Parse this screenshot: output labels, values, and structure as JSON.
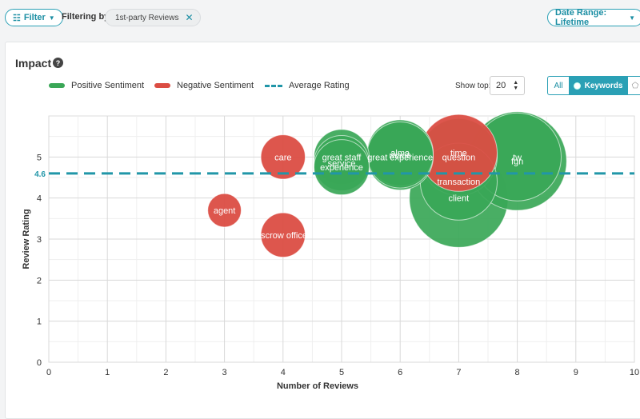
{
  "toolbar": {
    "filter_label": "Filter",
    "filtering_by_label": "Filtering by:",
    "chip_label": "1st-party Reviews",
    "date_range_label": "Date Range: Lifetime"
  },
  "panel": {
    "title": "Impact",
    "help_glyph": "?",
    "show_top_label": "Show top:",
    "show_top_value": "20",
    "view_all_label": "All",
    "view_keywords_label": "Keywords"
  },
  "colors": {
    "positive": "#3aa757",
    "negative": "#db4d43",
    "average": "#2196a8",
    "accent": "#2aa0b5"
  },
  "chart_data": {
    "type": "scatter",
    "subtype": "bubble",
    "xlabel": "Number of Reviews",
    "ylabel": "Review Rating",
    "xlim": [
      0,
      10
    ],
    "ylim": [
      0,
      6
    ],
    "xticks": [
      0,
      1,
      2,
      3,
      4,
      5,
      6,
      7,
      8,
      9,
      10
    ],
    "yticks": [
      0,
      1,
      2,
      3,
      4,
      5
    ],
    "grid": true,
    "legend": [
      {
        "name": "Positive Sentiment",
        "kind": "positive"
      },
      {
        "name": "Negative Sentiment",
        "kind": "negative"
      },
      {
        "name": "Average Rating",
        "kind": "average"
      }
    ],
    "average_rating": 4.6,
    "average_label": "4.6",
    "points": [
      {
        "label": "care",
        "x": 4,
        "y": 5.0,
        "size": 4,
        "sentiment": "negative"
      },
      {
        "label": "agent",
        "x": 3,
        "y": 3.7,
        "size": 3,
        "sentiment": "negative"
      },
      {
        "label": "escrow officer",
        "x": 4,
        "y": 3.1,
        "size": 4,
        "sentiment": "negative"
      },
      {
        "label": "great staff",
        "x": 5,
        "y": 5.0,
        "size": 5,
        "sentiment": "positive"
      },
      {
        "label": "service",
        "x": 5,
        "y": 4.85,
        "size": 5,
        "sentiment": "positive"
      },
      {
        "label": "experience",
        "x": 5,
        "y": 4.75,
        "size": 5,
        "sentiment": "positive"
      },
      {
        "label": "great experience",
        "x": 6,
        "y": 5.0,
        "size": 6,
        "sentiment": "positive"
      },
      {
        "label": "alma",
        "x": 6,
        "y": 5.1,
        "size": 6,
        "sentiment": "positive"
      },
      {
        "label": "marie",
        "x": 6,
        "y": 5.05,
        "size": 6,
        "sentiment": "positive"
      },
      {
        "label": "question",
        "x": 7,
        "y": 5.0,
        "size": 7,
        "sentiment": "positive"
      },
      {
        "label": "transaction",
        "x": 7,
        "y": 4.4,
        "size": 7,
        "sentiment": "positive"
      },
      {
        "label": "client",
        "x": 7,
        "y": 4.0,
        "size": 9,
        "sentiment": "positive"
      },
      {
        "label": "tw",
        "x": 8,
        "y": 5.0,
        "size": 8,
        "sentiment": "positive"
      },
      {
        "label": "fgn",
        "x": 8,
        "y": 4.9,
        "size": 9,
        "sentiment": "positive"
      },
      {
        "label": "time",
        "x": 7,
        "y": 5.1,
        "size": 7,
        "sentiment": "negative"
      }
    ]
  }
}
